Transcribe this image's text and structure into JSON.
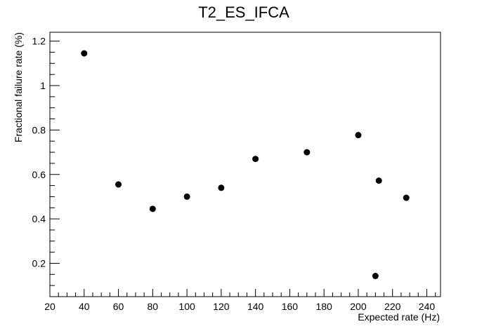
{
  "chart_data": {
    "type": "scatter",
    "title": "T2_ES_IFCA",
    "xlabel": "Expected rate (Hz)",
    "ylabel": "Fractional failure rate (%)",
    "xlim": [
      20,
      248
    ],
    "ylim": [
      0.05,
      1.24
    ],
    "x_ticks": [
      20,
      40,
      60,
      80,
      100,
      120,
      140,
      160,
      180,
      200,
      220,
      240
    ],
    "y_ticks": [
      0.2,
      0.4,
      0.6,
      0.8,
      1,
      1.2
    ],
    "grid": false,
    "marker_color": "#000000",
    "points": [
      {
        "x": 40,
        "y": 1.145
      },
      {
        "x": 60,
        "y": 0.555
      },
      {
        "x": 80,
        "y": 0.445
      },
      {
        "x": 100,
        "y": 0.5
      },
      {
        "x": 120,
        "y": 0.54
      },
      {
        "x": 140,
        "y": 0.67
      },
      {
        "x": 170,
        "y": 0.7
      },
      {
        "x": 200,
        "y": 0.777
      },
      {
        "x": 210,
        "y": 0.143
      },
      {
        "x": 212,
        "y": 0.572
      },
      {
        "x": 228,
        "y": 0.495
      }
    ]
  }
}
